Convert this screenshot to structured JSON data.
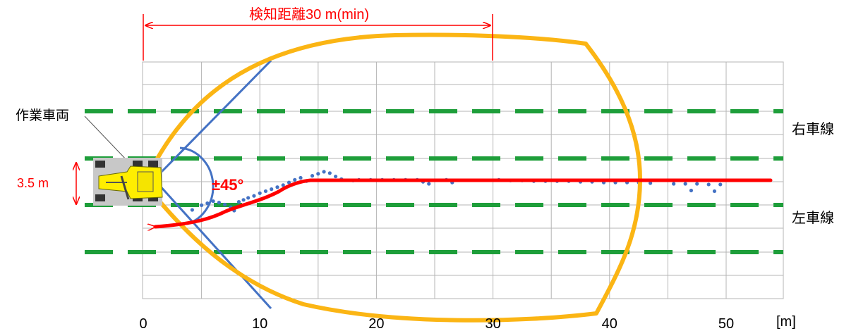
{
  "title_label": "検知距離30 m(min)",
  "vehicle_label": "作業車両",
  "lane_width_label": "3.5 m",
  "angle_label": "±45°",
  "right_lane_label": "右車線",
  "left_lane_label": "左車線",
  "x_axis": {
    "ticks": [
      "0",
      "10",
      "20",
      "30",
      "40",
      "50"
    ],
    "tick_values": [
      0,
      10,
      20,
      30,
      40,
      50
    ],
    "unit_label": "[m]",
    "range": [
      0,
      55
    ]
  },
  "colors": {
    "grid": "#b4b4b4",
    "lane_marking": "#1e9e3a",
    "detection_zone": "#fbb514",
    "fov_line": "#4472c4",
    "dimension": "#ff0000",
    "trajectory": "#ff0000",
    "points": "#4472c4",
    "vehicle_body": "#ffee00",
    "vehicle_bg": "#c8c8c8"
  },
  "chart_data": {
    "type": "scatter",
    "x_unit": "m",
    "detection_distance_min_m": 30,
    "sensor_angle_deg": 45,
    "lane_width_m": 3.5,
    "series": [
      {
        "values": [
          [
            4.2,
            -0.95
          ],
          [
            5.0,
            -0.6
          ],
          [
            5.5,
            -0.45
          ],
          [
            6.0,
            -0.3
          ],
          [
            6.5,
            -0.4
          ],
          [
            7.0,
            -0.55
          ],
          [
            7.5,
            -0.75
          ],
          [
            7.8,
            -1.0
          ],
          [
            8.2,
            -0.35
          ],
          [
            8.6,
            -0.2
          ],
          [
            9.0,
            -0.05
          ],
          [
            9.5,
            0.1
          ],
          [
            10.0,
            0.3
          ],
          [
            10.5,
            0.45
          ],
          [
            11.0,
            0.6
          ],
          [
            11.5,
            0.75
          ],
          [
            12.0,
            0.9
          ],
          [
            12.5,
            1.1
          ],
          [
            13.0,
            1.3
          ],
          [
            13.5,
            1.45
          ],
          [
            14.0,
            1.2
          ],
          [
            14.5,
            1.6
          ],
          [
            15.0,
            1.75
          ],
          [
            15.5,
            1.9
          ],
          [
            16.0,
            1.8
          ],
          [
            16.5,
            1.55
          ],
          [
            17.0,
            1.35
          ],
          [
            18.0,
            1.25
          ],
          [
            18.5,
            1.3
          ],
          [
            19.5,
            1.3
          ],
          [
            20.5,
            1.3
          ],
          [
            21.5,
            1.3
          ],
          [
            22.5,
            1.3
          ],
          [
            23.5,
            1.3
          ],
          [
            24.0,
            1.15
          ],
          [
            24.5,
            1.0
          ],
          [
            26.0,
            1.3
          ],
          [
            26.5,
            1.1
          ],
          [
            30.5,
            1.3
          ],
          [
            31.5,
            1.25
          ],
          [
            32.5,
            1.25
          ],
          [
            33.5,
            1.2
          ],
          [
            34.5,
            1.2
          ],
          [
            35.5,
            1.2
          ],
          [
            36.5,
            1.2
          ],
          [
            37.5,
            1.15
          ],
          [
            38.5,
            1.15
          ],
          [
            39.5,
            1.1
          ],
          [
            40.5,
            1.1
          ],
          [
            41.5,
            1.1
          ],
          [
            42.5,
            1.1
          ],
          [
            43.5,
            1.05
          ],
          [
            45.5,
            1.0
          ],
          [
            46.5,
            1.0
          ],
          [
            47.5,
            1.0
          ],
          [
            48.5,
            0.95
          ],
          [
            49.5,
            0.95
          ],
          [
            47.0,
            0.5
          ],
          [
            49.0,
            0.45
          ]
        ]
      }
    ]
  }
}
